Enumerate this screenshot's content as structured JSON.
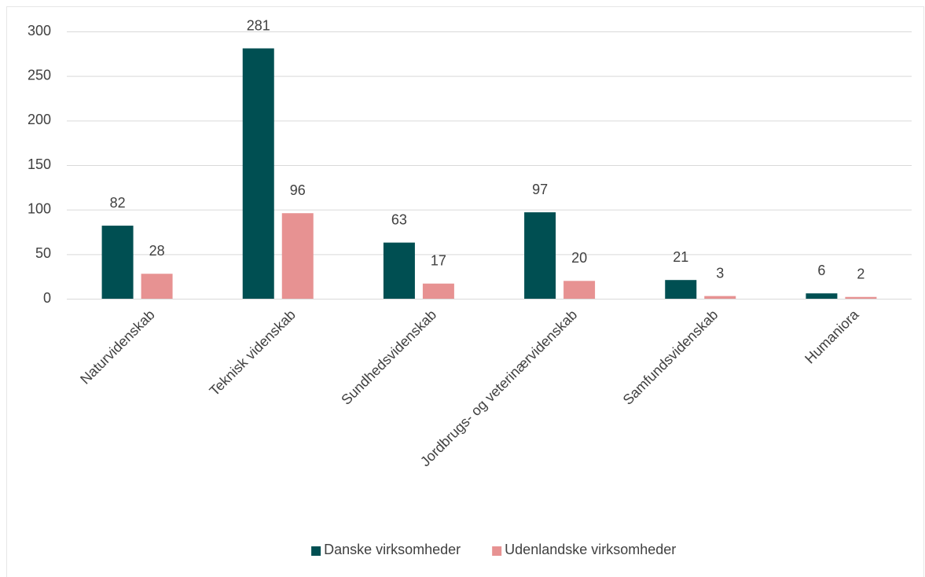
{
  "chart_data": {
    "type": "bar",
    "categories": [
      "Naturvidenskab",
      "Teknisk videnskab",
      "Sundhedsvidenskab",
      "Jordbrugs- og veterinærvidenskab",
      "Samfundsvidenskab",
      "Humaniora"
    ],
    "series": [
      {
        "name": "Danske virksomheder",
        "color": "#004f52",
        "values": [
          82,
          281,
          63,
          97,
          21,
          6
        ]
      },
      {
        "name": "Udenlandske virksomheder",
        "color": "#e79292",
        "values": [
          28,
          96,
          17,
          20,
          3,
          2
        ]
      }
    ],
    "ylim": [
      0,
      300
    ],
    "yticks": [
      0,
      50,
      100,
      150,
      200,
      250,
      300
    ],
    "grid": true,
    "legend": "bottom"
  }
}
